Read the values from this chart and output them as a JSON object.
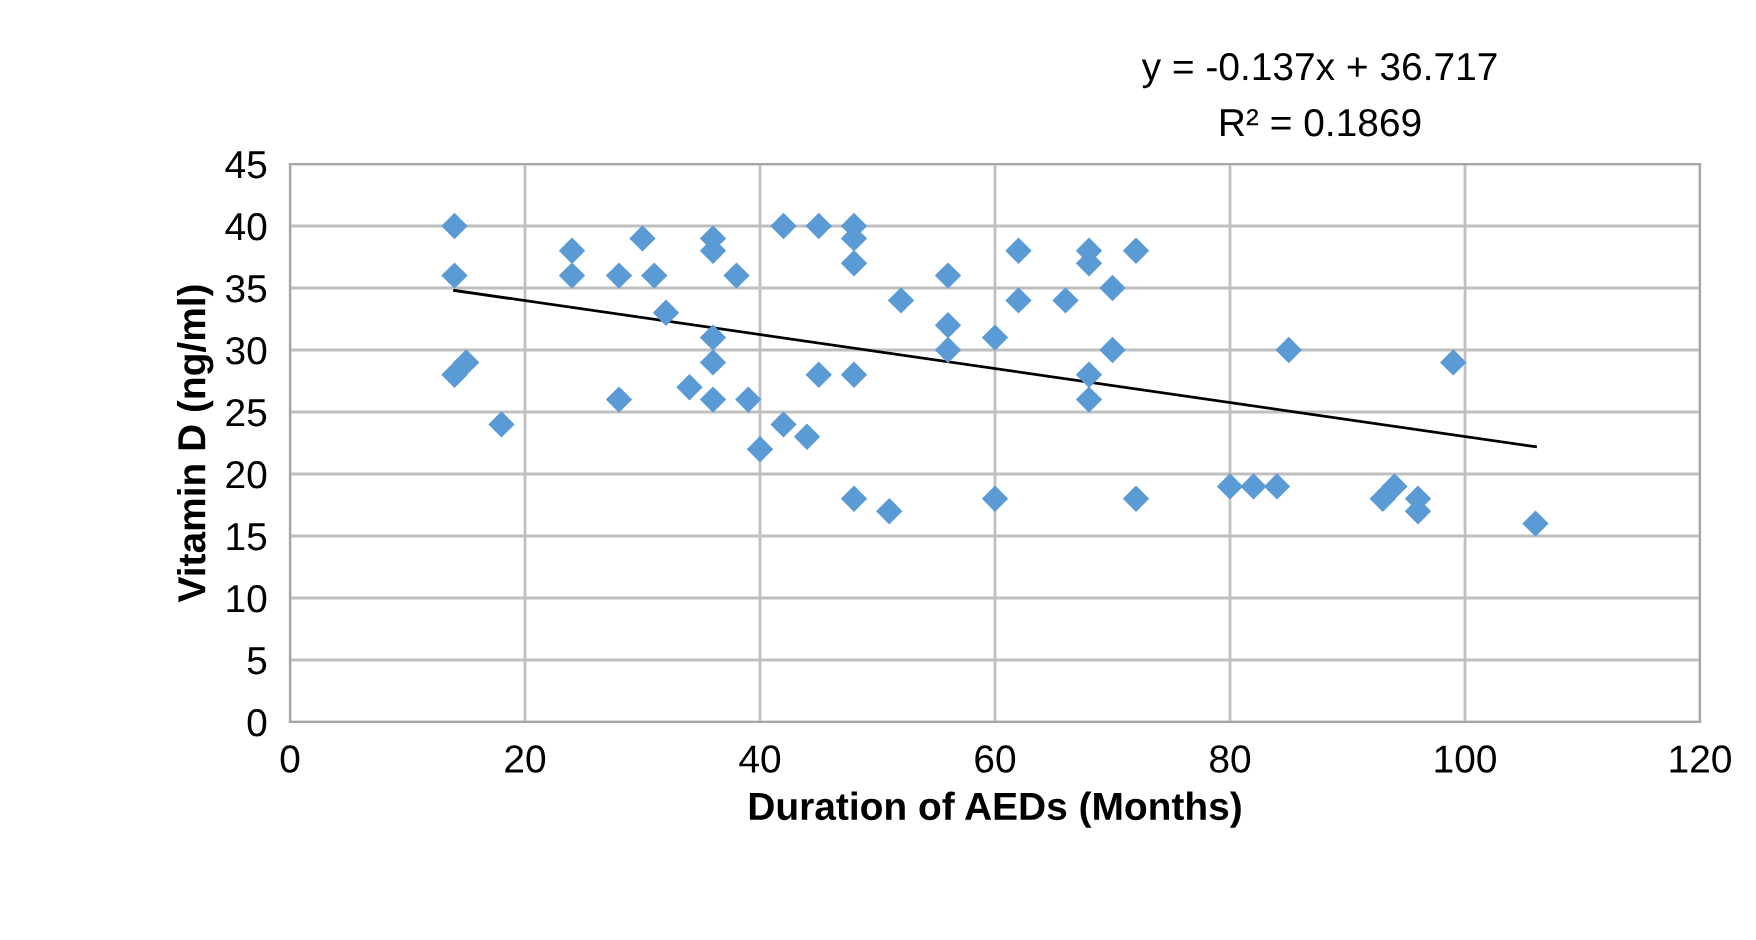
{
  "chart_data": {
    "type": "scatter",
    "xlabel": "Duration of AEDs (Months)",
    "ylabel": "Vitamin D (ng/ml)",
    "annotations": [
      "y = -0.137x + 36.717",
      "R² = 0.1869"
    ],
    "series": [
      {
        "color": "#5b9bd5",
        "marker": "diamond",
        "x": [
          14,
          14,
          14,
          15,
          18,
          24,
          24,
          28,
          28,
          30,
          31,
          32,
          34,
          36,
          36,
          36,
          36,
          36,
          38,
          39,
          40,
          42,
          42,
          44,
          45,
          45,
          48,
          48,
          48,
          48,
          48,
          51,
          52,
          56,
          56,
          56,
          60,
          60,
          62,
          62,
          66,
          68,
          68,
          68,
          68,
          70,
          70,
          72,
          72,
          80,
          82,
          84,
          85,
          93,
          94,
          96,
          96,
          99,
          106
        ],
        "values": [
          40,
          36,
          28,
          29,
          24,
          38,
          36,
          26,
          36,
          39,
          36,
          33,
          27,
          39,
          38,
          31,
          29,
          26,
          36,
          26,
          22,
          40,
          24,
          23,
          40,
          28,
          40,
          39,
          37,
          28,
          18,
          17,
          34,
          36,
          32,
          30,
          31,
          18,
          38,
          34,
          34,
          38,
          37,
          28,
          26,
          35,
          30,
          38,
          18,
          19,
          19,
          19,
          30,
          18,
          19,
          18,
          17,
          29,
          16
        ]
      },
      {
        "type": "line",
        "color": "#000000",
        "marker": "none",
        "line_style": "solid",
        "x": [
          14,
          106
        ],
        "values": [
          34.8,
          22.2
        ]
      }
    ],
    "xlim": [
      0,
      120
    ],
    "xticks": [
      0,
      20,
      40,
      60,
      80,
      100,
      120
    ],
    "ylim": [
      0,
      45
    ],
    "yticks": [
      0,
      5,
      10,
      15,
      20,
      25,
      30,
      35,
      40,
      45
    ],
    "grid": true
  }
}
